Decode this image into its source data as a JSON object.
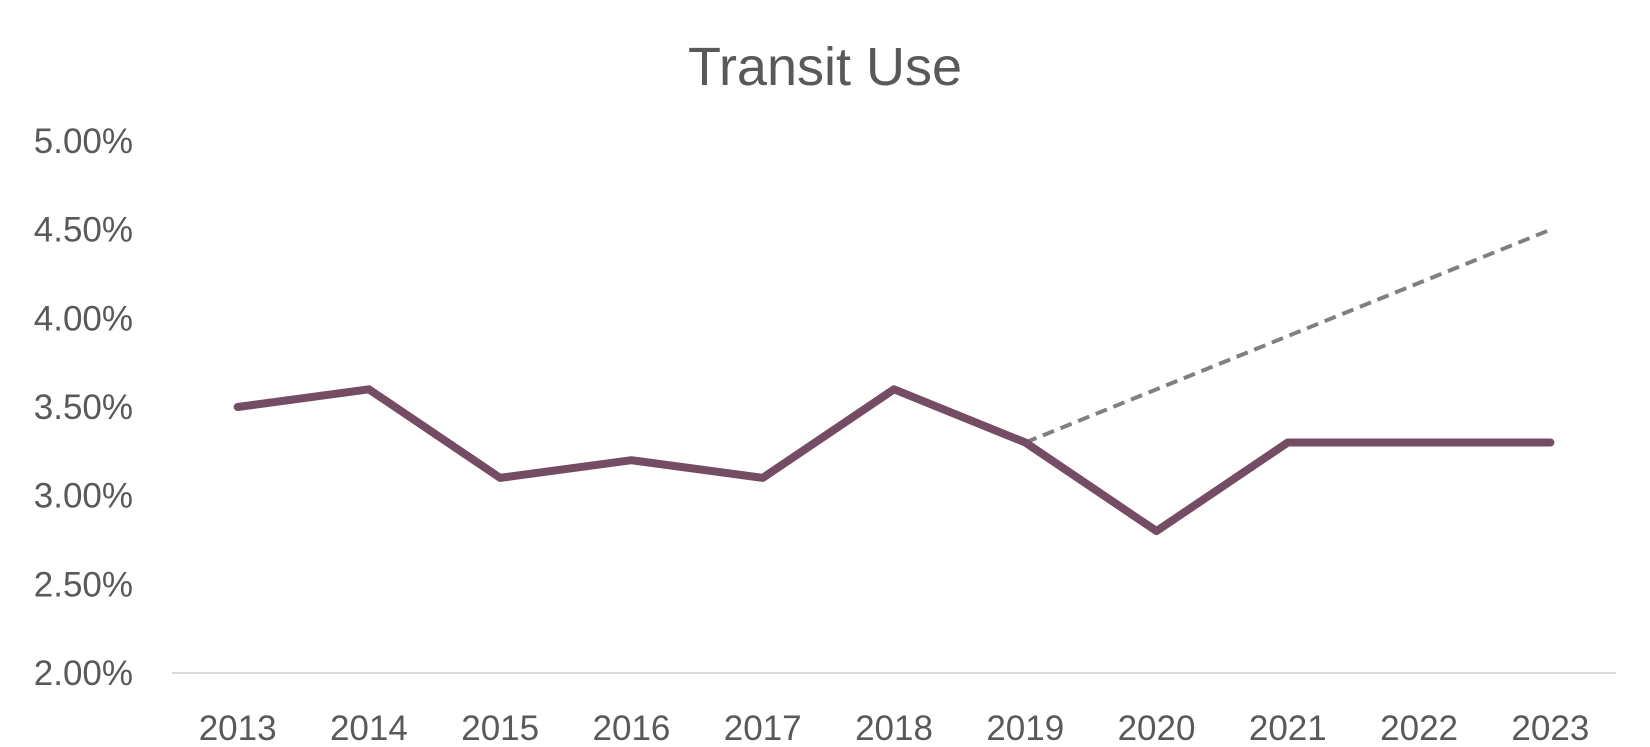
{
  "chart_data": {
    "type": "line",
    "title": "Transit Use",
    "xlabel": "",
    "ylabel": "",
    "categories": [
      "2013",
      "2014",
      "2015",
      "2016",
      "2017",
      "2018",
      "2019",
      "2020",
      "2021",
      "2022",
      "2023"
    ],
    "y_tick_labels": [
      "2.00%",
      "2.50%",
      "3.00%",
      "3.50%",
      "4.00%",
      "4.50%",
      "5.00%"
    ],
    "y_ticks": [
      2.0,
      2.5,
      3.0,
      3.5,
      4.0,
      4.5,
      5.0
    ],
    "ylim": [
      2.0,
      5.0
    ],
    "grid": false,
    "legend": "none",
    "series": [
      {
        "values": [
          3.5,
          3.6,
          3.1,
          3.2,
          3.1,
          3.6,
          3.3,
          2.8,
          3.3,
          3.3,
          3.3
        ],
        "color": "#744c64",
        "style": "solid"
      },
      {
        "x": [
          "2019",
          "2020",
          "2021",
          "2022",
          "2023"
        ],
        "values": [
          3.3,
          3.6,
          3.9,
          4.2,
          4.5
        ],
        "color": "#808080",
        "style": "dashed"
      }
    ]
  }
}
